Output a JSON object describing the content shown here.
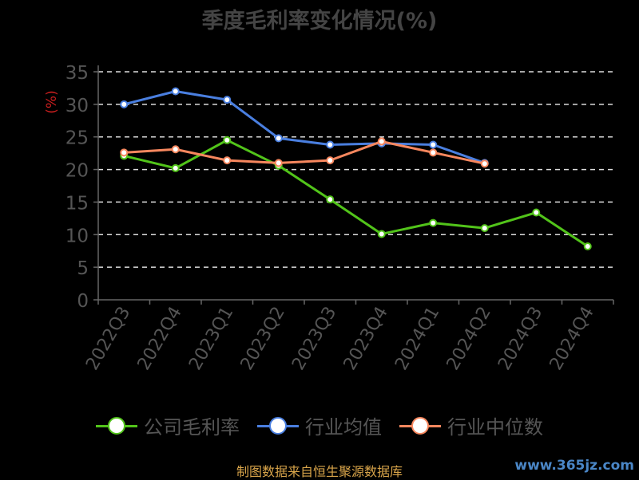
{
  "chart_data": {
    "type": "line",
    "title": "季度毛利率变化情况(%)",
    "ylabel": "(%)",
    "categories": [
      "2022Q3",
      "2022Q4",
      "2023Q1",
      "2023Q2",
      "2023Q3",
      "2023Q4",
      "2024Q1",
      "2024Q2",
      "2024Q3",
      "2024Q4"
    ],
    "ylim": [
      0,
      35
    ],
    "yticks": [
      0,
      5,
      10,
      15,
      20,
      25,
      30,
      35
    ],
    "grid": true,
    "legend_position": "bottom",
    "series": [
      {
        "name": "公司毛利率",
        "color": "#52c41a",
        "values": [
          22.1,
          20.2,
          24.5,
          20.6,
          15.4,
          10.1,
          11.8,
          11.0,
          13.4,
          8.2
        ]
      },
      {
        "name": "行业均值",
        "color": "#4a7fe0",
        "values": [
          30.0,
          32.0,
          30.7,
          24.8,
          23.8,
          24.0,
          23.8,
          21.0,
          null,
          null
        ]
      },
      {
        "name": "行业中位数",
        "color": "#f7875e",
        "values": [
          22.6,
          23.1,
          21.4,
          21.0,
          21.4,
          24.3,
          22.6,
          20.9,
          null,
          null
        ]
      }
    ]
  },
  "source_note": "制图数据来自恒生聚源数据库",
  "watermark": "www.365jz.com"
}
